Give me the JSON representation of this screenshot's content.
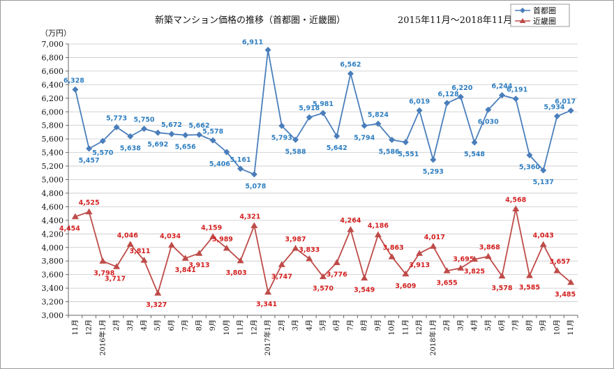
{
  "chart_data": {
    "type": "line",
    "title": "新築マンション価格の推移（首都圏・近畿圏）",
    "period": "2015年11月～2018年11月",
    "ylabel": "（万円）",
    "ylim": [
      3000,
      7000
    ],
    "yticks": [
      "3,000",
      "3,200",
      "3,400",
      "3,600",
      "3,800",
      "4,000",
      "4,200",
      "4,400",
      "4,600",
      "4,800",
      "5,000",
      "5,200",
      "5,400",
      "5,600",
      "5,800",
      "6,000",
      "6,200",
      "6,400",
      "6,600",
      "6,800",
      "7,000"
    ],
    "categories": [
      "11月",
      "12月",
      "2016年1月",
      "2月",
      "3月",
      "4月",
      "5月",
      "6月",
      "7月",
      "8月",
      "9月",
      "10月",
      "11月",
      "12月",
      "2017年1月",
      "2月",
      "3月",
      "4月",
      "5月",
      "6月",
      "7月",
      "8月",
      "9月",
      "10月",
      "11月",
      "12月",
      "2018年1月",
      "2月",
      "3月",
      "4月",
      "5月",
      "6月",
      "7月",
      "8月",
      "9月",
      "10月",
      "11月"
    ],
    "series": [
      {
        "name": "首都圏",
        "color": "#4a7ebb",
        "label_color": "#2f7fc1",
        "marker": "diamond",
        "values": [
          6328,
          5457,
          5570,
          5773,
          5638,
          5750,
          5692,
          5672,
          5656,
          5662,
          5578,
          5406,
          5161,
          5078,
          6911,
          5793,
          5588,
          5918,
          5981,
          5642,
          6562,
          5794,
          5824,
          5586,
          5551,
          6019,
          5293,
          6128,
          6220,
          5548,
          6030,
          6244,
          6191,
          5360,
          5137,
          5934,
          6017
        ],
        "labels": [
          "6,328",
          "5,457",
          "5,570",
          "5,773",
          "5,638",
          "5,750",
          "5,692",
          "5,672",
          "5,656",
          "5,662",
          "5,578",
          "5,406",
          "5,161",
          "5,078",
          "6,911",
          "5,793",
          "5,588",
          "5,918",
          "5,981",
          "5,642",
          "6,562",
          "5,794",
          "5,824",
          "5,586",
          "5,551",
          "6,019",
          "5,293",
          "6,128",
          "6,220",
          "5,548",
          "6,030",
          "6,244",
          "6,191",
          "5,360",
          "5,137",
          "5,934",
          "6,017"
        ]
      },
      {
        "name": "近畿圏",
        "color": "#be4b48",
        "label_color": "#d42020",
        "marker": "triangle",
        "values": [
          4454,
          4525,
          3798,
          3717,
          4046,
          3811,
          3327,
          4034,
          3841,
          3913,
          4159,
          3989,
          3803,
          4321,
          3341,
          3747,
          3987,
          3833,
          3570,
          3776,
          4264,
          3549,
          4186,
          3863,
          3609,
          3913,
          4017,
          3655,
          3695,
          3825,
          3868,
          3578,
          4568,
          3585,
          4043,
          3657,
          3485
        ],
        "labels": [
          "4,454",
          "4,525",
          "3,798",
          "3,717",
          "4,046",
          "3,811",
          "3,327",
          "4,034",
          "3,841",
          "3,913",
          "4,159",
          "3,989",
          "3,803",
          "4,321",
          "3,341",
          "3,747",
          "3,987",
          "3,833",
          "3,570",
          "3,776",
          "4,264",
          "3,549",
          "4,186",
          "3,863",
          "3,609",
          "3,913",
          "4,017",
          "3,655",
          "3,695",
          "3,825",
          "3,868",
          "3,578",
          "4,568",
          "3,585",
          "4,043",
          "3,657",
          "3,485"
        ]
      }
    ],
    "legend": [
      "首都圏",
      "近畿圏"
    ],
    "legend_position": "top-right",
    "grid": true
  }
}
